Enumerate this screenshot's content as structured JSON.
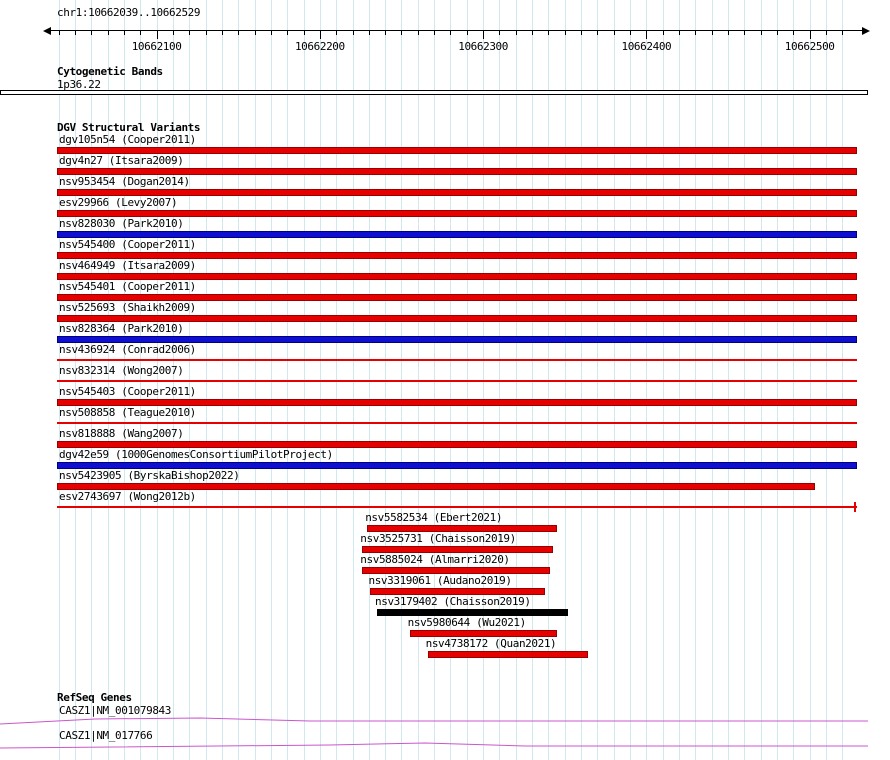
{
  "header": {
    "region_label": "chr1:10662039..10662529"
  },
  "colors": {
    "grid": "#cfe9ee",
    "red": "#e60000",
    "red_border": "#990000",
    "blue": "#0f0fd2",
    "blue_border": "#000080",
    "black": "#000000",
    "black_border": "#000000",
    "gene": "#cc55cc",
    "axis": "#000000"
  },
  "chart_data": {
    "type": "genome-interval-tracks",
    "axis": {
      "chromosome": "chr1",
      "start": 10662039,
      "end": 10662529,
      "minor_tick_bp": 10,
      "major_ticks": [
        {
          "pos": 10662100,
          "label": "10662100"
        },
        {
          "pos": 10662200,
          "label": "10662200"
        },
        {
          "pos": 10662300,
          "label": "10662300"
        },
        {
          "pos": 10662400,
          "label": "10662400"
        },
        {
          "pos": 10662500,
          "label": "10662500"
        }
      ]
    },
    "sections": {
      "cytogenetic": {
        "title": "Cytogenetic Bands",
        "bands": [
          {
            "name": "1p36.22"
          }
        ]
      },
      "dgv": {
        "title": "DGV Structural Variants",
        "tracks": [
          {
            "label": "dgv105n54 (Cooper2011)",
            "color": "red",
            "glyph": "box",
            "start": 10662039,
            "end": 10662529
          },
          {
            "label": "dgv4n27 (Itsara2009)",
            "color": "red",
            "glyph": "box",
            "start": 10662039,
            "end": 10662529
          },
          {
            "label": "nsv953454 (Dogan2014)",
            "color": "red",
            "glyph": "box",
            "start": 10662039,
            "end": 10662529
          },
          {
            "label": "esv29966 (Levy2007)",
            "color": "red",
            "glyph": "box",
            "start": 10662039,
            "end": 10662529
          },
          {
            "label": "nsv828030 (Park2010)",
            "color": "blue",
            "glyph": "box",
            "start": 10662039,
            "end": 10662529
          },
          {
            "label": "nsv545400 (Cooper2011)",
            "color": "red",
            "glyph": "box",
            "start": 10662039,
            "end": 10662529
          },
          {
            "label": "nsv464949 (Itsara2009)",
            "color": "red",
            "glyph": "box",
            "start": 10662039,
            "end": 10662529
          },
          {
            "label": "nsv545401 (Cooper2011)",
            "color": "red",
            "glyph": "box",
            "start": 10662039,
            "end": 10662529
          },
          {
            "label": "nsv525693 (Shaikh2009)",
            "color": "red",
            "glyph": "box",
            "start": 10662039,
            "end": 10662529
          },
          {
            "label": "nsv828364 (Park2010)",
            "color": "blue",
            "glyph": "box",
            "start": 10662039,
            "end": 10662529
          },
          {
            "label": "nsv436924 (Conrad2006)",
            "color": "red",
            "glyph": "line",
            "start": 10662039,
            "end": 10662529
          },
          {
            "label": "nsv832314 (Wong2007)",
            "color": "red",
            "glyph": "line",
            "start": 10662039,
            "end": 10662529
          },
          {
            "label": "nsv545403 (Cooper2011)",
            "color": "red",
            "glyph": "box",
            "start": 10662039,
            "end": 10662529
          },
          {
            "label": "nsv508858 (Teague2010)",
            "color": "red",
            "glyph": "line",
            "start": 10662039,
            "end": 10662529
          },
          {
            "label": "nsv818888 (Wang2007)",
            "color": "red",
            "glyph": "box",
            "start": 10662039,
            "end": 10662529
          },
          {
            "label": "dgv42e59 (1000GenomesConsortiumPilotProject)",
            "color": "blue",
            "glyph": "box",
            "start": 10662039,
            "end": 10662529
          },
          {
            "label": "nsv5423905 (ByrskaBishop2022)",
            "color": "red",
            "glyph": "box",
            "start": 10662039,
            "end": 10662503
          },
          {
            "label": "esv2743697 (Wong2012b)",
            "color": "red",
            "glyph": "line",
            "start": 10662039,
            "end": 10662529,
            "right_tick": true
          },
          {
            "label": "nsv5582534 (Ebert2021)",
            "color": "red",
            "glyph": "box",
            "start": 10662229,
            "end": 10662345
          },
          {
            "label": "nsv3525731 (Chaisson2019)",
            "color": "red",
            "glyph": "box",
            "start": 10662226,
            "end": 10662343
          },
          {
            "label": "nsv5885024 (Almarri2020)",
            "color": "red",
            "glyph": "box",
            "start": 10662226,
            "end": 10662341
          },
          {
            "label": "nsv3319061 (Audano2019)",
            "color": "red",
            "glyph": "box",
            "start": 10662231,
            "end": 10662338
          },
          {
            "label": "nsv3179402 (Chaisson2019)",
            "color": "black",
            "glyph": "box",
            "start": 10662235,
            "end": 10662352
          },
          {
            "label": "nsv5980644 (Wu2021)",
            "color": "red",
            "glyph": "box",
            "start": 10662255,
            "end": 10662345
          },
          {
            "label": "nsv4738172 (Quan2021)",
            "color": "red",
            "glyph": "box",
            "start": 10662266,
            "end": 10662364
          }
        ]
      },
      "refseq": {
        "title": "RefSeq Genes",
        "genes": [
          {
            "label": "CASZ1|NM_001079843"
          },
          {
            "label": "CASZ1|NM_017766"
          }
        ]
      }
    }
  }
}
